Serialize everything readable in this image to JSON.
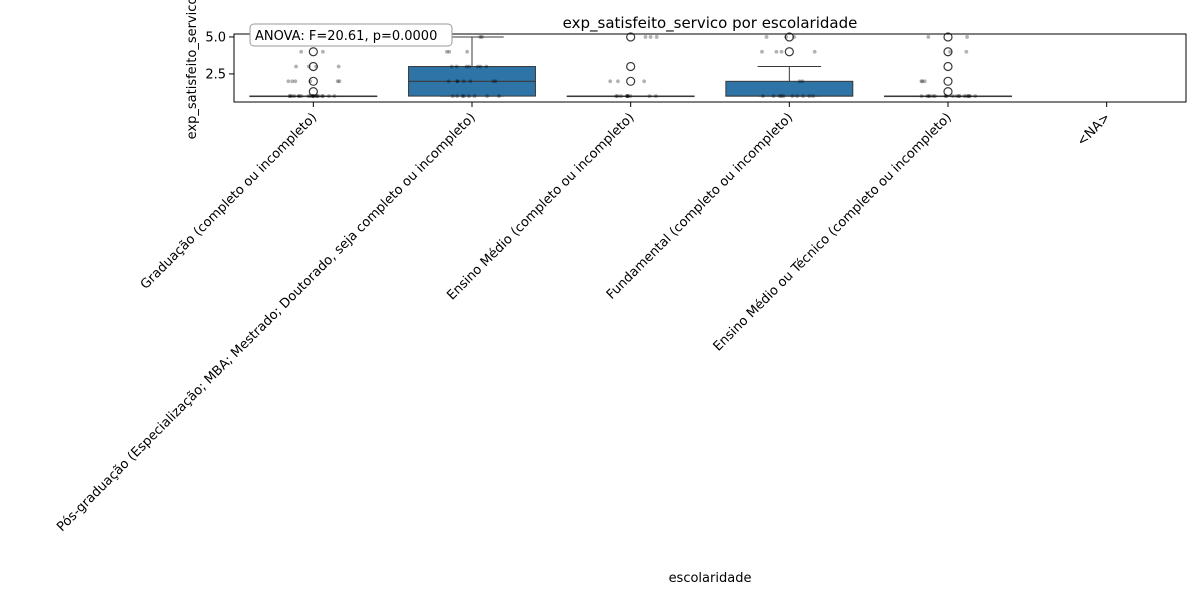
{
  "chart_data": {
    "type": "box",
    "title": "exp_satisfeito_servico por escolaridade",
    "xlabel": "escolaridade",
    "ylabel": "exp_satisfeito_servico",
    "annotation": "ANOVA: F=20.61, p=0.0000",
    "ylim": [
      0.6,
      5.2
    ],
    "yticks": [
      2.5,
      5.0
    ],
    "ytick_labels": [
      "2.5",
      "5.0"
    ],
    "box_color": "#2e74a7",
    "categories": [
      "Graduação (completo ou incompleto)",
      "Pós-graduação (Especialização; MBA; Mestrado; Doutorado, seja completo ou incompleto)",
      "Ensino Médio (completo ou incompleto)",
      "Fundamental (completo ou incompleto)",
      "Ensino Médio ou Técnico (completo ou incompleto)",
      "<NA>"
    ],
    "boxes": [
      {
        "q1": 1,
        "median": 1,
        "q3": 1,
        "whisker_low": 1,
        "whisker_high": 1,
        "outliers": [
          1.3,
          2,
          3,
          4,
          5
        ]
      },
      {
        "q1": 1,
        "median": 2,
        "q3": 3,
        "whisker_low": 1,
        "whisker_high": 5,
        "outliers": []
      },
      {
        "q1": 1,
        "median": 1,
        "q3": 1,
        "whisker_low": 1,
        "whisker_high": 1,
        "outliers": [
          2,
          3,
          5
        ]
      },
      {
        "q1": 1,
        "median": 1,
        "q3": 2,
        "whisker_low": 1,
        "whisker_high": 3,
        "outliers": [
          4,
          5
        ]
      },
      {
        "q1": 1,
        "median": 1,
        "q3": 1,
        "whisker_low": 1,
        "whisker_high": 1,
        "outliers": [
          1.3,
          2,
          3,
          4,
          5
        ]
      },
      null
    ],
    "jitter_points": [
      {
        "category": 0,
        "values": [
          1,
          1,
          1,
          1,
          1,
          1,
          1,
          1,
          1,
          1,
          1,
          1,
          1,
          1,
          1,
          1,
          1,
          1,
          1,
          1,
          2,
          2,
          2,
          2,
          2,
          2,
          3,
          3,
          3,
          3,
          4,
          4,
          5
        ]
      },
      {
        "category": 1,
        "values": [
          1,
          1,
          1,
          1,
          1,
          1,
          1,
          1,
          2,
          2,
          2,
          2,
          2,
          2,
          2,
          3,
          3,
          3,
          3,
          3,
          3,
          3,
          4,
          4,
          4,
          5,
          5
        ]
      },
      {
        "category": 2,
        "values": [
          1,
          1,
          1,
          1,
          1,
          1,
          1,
          1,
          1,
          1,
          2,
          2,
          2,
          5,
          5,
          5
        ]
      },
      {
        "category": 3,
        "values": [
          1,
          1,
          1,
          1,
          1,
          1,
          1,
          1,
          1,
          1,
          2,
          2,
          4,
          4,
          4,
          4,
          5,
          5,
          5
        ]
      },
      {
        "category": 4,
        "values": [
          1,
          1,
          1,
          1,
          1,
          1,
          1,
          1,
          1,
          1,
          1,
          1,
          1,
          1,
          1,
          1,
          1,
          1,
          2,
          2,
          2,
          4,
          4,
          5,
          5
        ]
      }
    ]
  }
}
